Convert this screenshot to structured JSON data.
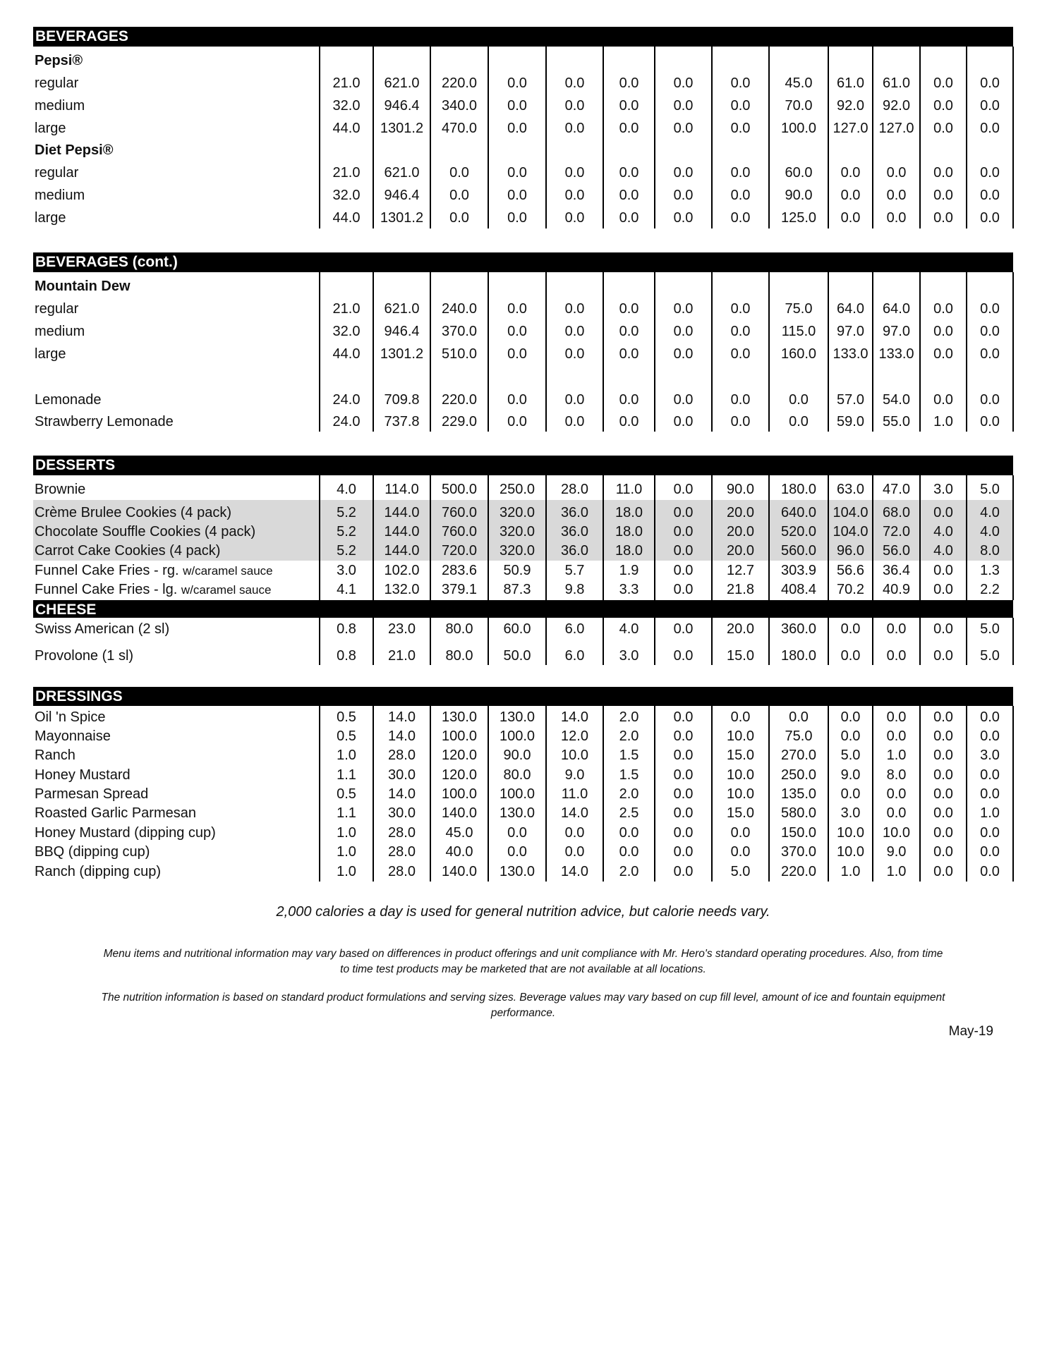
{
  "sections": [
    {
      "title": "BEVERAGES",
      "rows": [
        {
          "label": "Pepsi®",
          "bold": true,
          "values": []
        },
        {
          "label": "regular",
          "values": [
            "21.0",
            "621.0",
            "220.0",
            "0.0",
            "0.0",
            "0.0",
            "0.0",
            "0.0",
            "45.0",
            "61.0",
            "61.0",
            "0.0",
            "0.0"
          ]
        },
        {
          "label": "medium",
          "values": [
            "32.0",
            "946.4",
            "340.0",
            "0.0",
            "0.0",
            "0.0",
            "0.0",
            "0.0",
            "70.0",
            "92.0",
            "92.0",
            "0.0",
            "0.0"
          ]
        },
        {
          "label": "large",
          "values": [
            "44.0",
            "1301.2",
            "470.0",
            "0.0",
            "0.0",
            "0.0",
            "0.0",
            "0.0",
            "100.0",
            "127.0",
            "127.0",
            "0.0",
            "0.0"
          ]
        },
        {
          "label": "Diet Pepsi®",
          "bold": true,
          "values": []
        },
        {
          "label": "regular",
          "values": [
            "21.0",
            "621.0",
            "0.0",
            "0.0",
            "0.0",
            "0.0",
            "0.0",
            "0.0",
            "60.0",
            "0.0",
            "0.0",
            "0.0",
            "0.0"
          ]
        },
        {
          "label": "medium",
          "values": [
            "32.0",
            "946.4",
            "0.0",
            "0.0",
            "0.0",
            "0.0",
            "0.0",
            "0.0",
            "90.0",
            "0.0",
            "0.0",
            "0.0",
            "0.0"
          ]
        },
        {
          "label": "large",
          "values": [
            "44.0",
            "1301.2",
            "0.0",
            "0.0",
            "0.0",
            "0.0",
            "0.0",
            "0.0",
            "125.0",
            "0.0",
            "0.0",
            "0.0",
            "0.0"
          ]
        }
      ]
    },
    {
      "title": "BEVERAGES (cont.)",
      "rows": [
        {
          "label": "Mountain Dew",
          "bold": true,
          "values": []
        },
        {
          "label": "regular",
          "values": [
            "21.0",
            "621.0",
            "240.0",
            "0.0",
            "0.0",
            "0.0",
            "0.0",
            "0.0",
            "75.0",
            "64.0",
            "64.0",
            "0.0",
            "0.0"
          ]
        },
        {
          "label": "medium",
          "values": [
            "32.0",
            "946.4",
            "370.0",
            "0.0",
            "0.0",
            "0.0",
            "0.0",
            "0.0",
            "115.0",
            "97.0",
            "97.0",
            "0.0",
            "0.0"
          ]
        },
        {
          "label": "large",
          "values": [
            "44.0",
            "1301.2",
            "510.0",
            "0.0",
            "0.0",
            "0.0",
            "0.0",
            "0.0",
            "160.0",
            "133.0",
            "133.0",
            "0.0",
            "0.0"
          ]
        },
        {
          "label": "Lemonade",
          "values": [
            "24.0",
            "709.8",
            "220.0",
            "0.0",
            "0.0",
            "0.0",
            "0.0",
            "0.0",
            "0.0",
            "57.0",
            "54.0",
            "0.0",
            "0.0"
          ]
        },
        {
          "label": "Strawberry Lemonade",
          "values": [
            "24.0",
            "737.8",
            "229.0",
            "0.0",
            "0.0",
            "0.0",
            "0.0",
            "0.0",
            "0.0",
            "59.0",
            "55.0",
            "1.0",
            "0.0"
          ]
        }
      ]
    },
    {
      "title": "DESSERTS",
      "rows": [
        {
          "label": "Brownie",
          "values": [
            "4.0",
            "114.0",
            "500.0",
            "250.0",
            "28.0",
            "11.0",
            "0.0",
            "90.0",
            "180.0",
            "63.0",
            "47.0",
            "3.0",
            "5.0"
          ]
        },
        {
          "label": "Crème Brulee Cookies (4 pack)",
          "values": [
            "5.2",
            "144.0",
            "760.0",
            "320.0",
            "36.0",
            "18.0",
            "0.0",
            "20.0",
            "640.0",
            "104.0",
            "68.0",
            "0.0",
            "4.0"
          ]
        },
        {
          "label": "Chocolate Souffle Cookies (4 pack)",
          "values": [
            "5.2",
            "144.0",
            "760.0",
            "320.0",
            "36.0",
            "18.0",
            "0.0",
            "20.0",
            "520.0",
            "104.0",
            "72.0",
            "4.0",
            "4.0"
          ]
        },
        {
          "label": "Carrot Cake Cookies (4 pack)",
          "values": [
            "5.2",
            "144.0",
            "720.0",
            "320.0",
            "36.0",
            "18.0",
            "0.0",
            "20.0",
            "560.0",
            "96.0",
            "56.0",
            "4.0",
            "8.0"
          ]
        },
        {
          "label": "Funnel Cake Fries - rg.",
          "note": "w/caramel sauce",
          "values": [
            "3.0",
            "102.0",
            "283.6",
            "50.9",
            "5.7",
            "1.9",
            "0.0",
            "12.7",
            "303.9",
            "56.6",
            "36.4",
            "0.0",
            "1.3"
          ]
        },
        {
          "label": "Funnel Cake Fries - lg.",
          "note": "w/caramel sauce",
          "values": [
            "4.1",
            "132.0",
            "379.1",
            "87.3",
            "9.8",
            "3.3",
            "0.0",
            "21.8",
            "408.4",
            "70.2",
            "40.9",
            "0.0",
            "2.2"
          ]
        }
      ]
    },
    {
      "title": "CHEESE",
      "rows": [
        {
          "label": "Swiss American (2 sl)",
          "values": [
            "0.8",
            "23.0",
            "80.0",
            "60.0",
            "6.0",
            "4.0",
            "0.0",
            "20.0",
            "360.0",
            "0.0",
            "0.0",
            "0.0",
            "5.0"
          ]
        },
        {
          "label": "Provolone (1 sl)",
          "values": [
            "0.8",
            "21.0",
            "80.0",
            "50.0",
            "6.0",
            "3.0",
            "0.0",
            "15.0",
            "180.0",
            "0.0",
            "0.0",
            "0.0",
            "5.0"
          ]
        }
      ]
    },
    {
      "title": "DRESSINGS",
      "rows": [
        {
          "label": "Oil 'n Spice",
          "values": [
            "0.5",
            "14.0",
            "130.0",
            "130.0",
            "14.0",
            "2.0",
            "0.0",
            "0.0",
            "0.0",
            "0.0",
            "0.0",
            "0.0",
            "0.0"
          ]
        },
        {
          "label": "Mayonnaise",
          "values": [
            "0.5",
            "14.0",
            "100.0",
            "100.0",
            "12.0",
            "2.0",
            "0.0",
            "10.0",
            "75.0",
            "0.0",
            "0.0",
            "0.0",
            "0.0"
          ]
        },
        {
          "label": "Ranch",
          "values": [
            "1.0",
            "28.0",
            "120.0",
            "90.0",
            "10.0",
            "1.5",
            "0.0",
            "15.0",
            "270.0",
            "5.0",
            "1.0",
            "0.0",
            "3.0"
          ]
        },
        {
          "label": "Honey Mustard",
          "values": [
            "1.1",
            "30.0",
            "120.0",
            "80.0",
            "9.0",
            "1.5",
            "0.0",
            "10.0",
            "250.0",
            "9.0",
            "8.0",
            "0.0",
            "0.0"
          ]
        },
        {
          "label": "Parmesan Spread",
          "values": [
            "0.5",
            "14.0",
            "100.0",
            "100.0",
            "11.0",
            "2.0",
            "0.0",
            "10.0",
            "135.0",
            "0.0",
            "0.0",
            "0.0",
            "0.0"
          ]
        },
        {
          "label": "Roasted Garlic Parmesan",
          "values": [
            "1.1",
            "30.0",
            "140.0",
            "130.0",
            "14.0",
            "2.5",
            "0.0",
            "15.0",
            "580.0",
            "3.0",
            "0.0",
            "0.0",
            "1.0"
          ]
        },
        {
          "label": "Honey Mustard (dipping cup)",
          "values": [
            "1.0",
            "28.0",
            "45.0",
            "0.0",
            "0.0",
            "0.0",
            "0.0",
            "0.0",
            "150.0",
            "10.0",
            "10.0",
            "0.0",
            "0.0"
          ]
        },
        {
          "label": "BBQ (dipping cup)",
          "values": [
            "1.0",
            "28.0",
            "40.0",
            "0.0",
            "0.0",
            "0.0",
            "0.0",
            "0.0",
            "370.0",
            "10.0",
            "9.0",
            "0.0",
            "0.0"
          ]
        },
        {
          "label": "Ranch (dipping cup)",
          "values": [
            "1.0",
            "28.0",
            "140.0",
            "130.0",
            "14.0",
            "2.0",
            "0.0",
            "5.0",
            "220.0",
            "1.0",
            "1.0",
            "0.0",
            "0.0"
          ]
        }
      ]
    }
  ],
  "highlight_color": "#d9d9d9",
  "footer": {
    "calorie_note": "2,000 calories a day is used for general nutrition advice, but calorie needs vary.",
    "disclaimer_1a": "Menu items and nutritional information may vary based on differences in product offerings and unit compliance with Mr. Hero's standard operating procedures. Also, from time",
    "disclaimer_1b": "to time test products may be marketed that are not available at all locations.",
    "disclaimer_2a": "The nutrition information is based on standard product formulations and serving sizes. Beverage values may vary based on cup fill level, amount of ice and fountain equipment",
    "disclaimer_2b": "performance.",
    "date": "May-19"
  }
}
